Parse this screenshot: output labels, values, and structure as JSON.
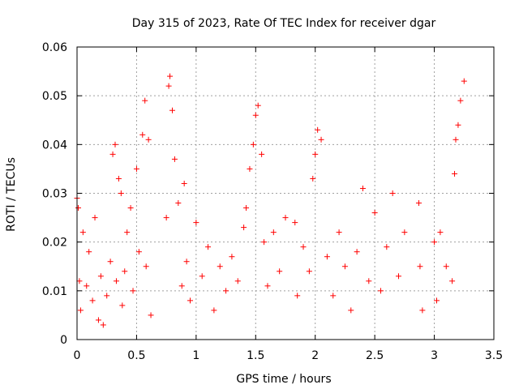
{
  "chart_data": {
    "type": "scatter",
    "title": "Day 315 of 2023, Rate Of TEC Index for receiver dgar",
    "xlabel": "GPS time / hours",
    "ylabel": "ROTI / TECUs",
    "xlim": [
      0,
      3.5
    ],
    "ylim": [
      0,
      0.06
    ],
    "x_ticks": [
      "0",
      "0.5",
      "1",
      "1.5",
      "2",
      "2.5",
      "3",
      "3.5"
    ],
    "y_ticks": [
      "0",
      "0.01",
      "0.02",
      "0.03",
      "0.04",
      "0.05",
      "0.06"
    ],
    "grid": true,
    "marker": "+",
    "color": "#ff0000",
    "series": [
      {
        "x": [
          0.0,
          0.01,
          0.02,
          0.03,
          0.05,
          0.08,
          0.1,
          0.13,
          0.15,
          0.18,
          0.2,
          0.22,
          0.25,
          0.28,
          0.3,
          0.32,
          0.33,
          0.35,
          0.37,
          0.38,
          0.4,
          0.42,
          0.45,
          0.47,
          0.5,
          0.52,
          0.55,
          0.57,
          0.58,
          0.6,
          0.62,
          0.75,
          0.77,
          0.78,
          0.8,
          0.82,
          0.85,
          0.88,
          0.9,
          0.92,
          0.95,
          1.0,
          1.05,
          1.1,
          1.15,
          1.2,
          1.25,
          1.3,
          1.35,
          1.4,
          1.42,
          1.45,
          1.48,
          1.5,
          1.52,
          1.55,
          1.57,
          1.6,
          1.65,
          1.7,
          1.75,
          1.83,
          1.85,
          1.9,
          1.95,
          1.98,
          2.0,
          2.02,
          2.05,
          2.1,
          2.15,
          2.2,
          2.25,
          2.3,
          2.35,
          2.4,
          2.45,
          2.5,
          2.55,
          2.6,
          2.65,
          2.7,
          2.75,
          2.87,
          2.88,
          2.9,
          3.0,
          3.02,
          3.05,
          3.1,
          3.15,
          3.17,
          3.18,
          3.2,
          3.22,
          3.25
        ],
        "y": [
          0.029,
          0.027,
          0.012,
          0.006,
          0.022,
          0.011,
          0.018,
          0.008,
          0.025,
          0.004,
          0.013,
          0.003,
          0.009,
          0.016,
          0.038,
          0.04,
          0.012,
          0.033,
          0.03,
          0.007,
          0.014,
          0.022,
          0.027,
          0.01,
          0.035,
          0.018,
          0.042,
          0.049,
          0.015,
          0.041,
          0.005,
          0.025,
          0.052,
          0.054,
          0.047,
          0.037,
          0.028,
          0.011,
          0.032,
          0.016,
          0.008,
          0.024,
          0.013,
          0.019,
          0.006,
          0.015,
          0.01,
          0.017,
          0.012,
          0.023,
          0.027,
          0.035,
          0.04,
          0.046,
          0.048,
          0.038,
          0.02,
          0.011,
          0.022,
          0.014,
          0.025,
          0.024,
          0.009,
          0.019,
          0.014,
          0.033,
          0.038,
          0.043,
          0.041,
          0.017,
          0.009,
          0.022,
          0.015,
          0.006,
          0.018,
          0.031,
          0.012,
          0.026,
          0.01,
          0.019,
          0.03,
          0.013,
          0.022,
          0.028,
          0.015,
          0.006,
          0.02,
          0.008,
          0.022,
          0.015,
          0.012,
          0.034,
          0.041,
          0.044,
          0.049,
          0.053
        ]
      }
    ]
  }
}
